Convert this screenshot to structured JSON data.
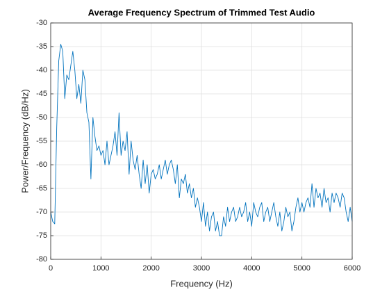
{
  "chart_data": {
    "type": "line",
    "title": "Average Frequency Spectrum of Trimmed Test Audio",
    "xlabel": "Frequency (Hz)",
    "ylabel": "Power/Frequency (dB/Hz)",
    "x": [
      0,
      40,
      80,
      120,
      160,
      200,
      240,
      280,
      320,
      360,
      400,
      440,
      480,
      520,
      560,
      600,
      640,
      680,
      720,
      760,
      800,
      840,
      880,
      920,
      960,
      1000,
      1040,
      1080,
      1120,
      1160,
      1200,
      1240,
      1280,
      1320,
      1360,
      1400,
      1440,
      1480,
      1520,
      1560,
      1600,
      1640,
      1680,
      1720,
      1760,
      1800,
      1840,
      1880,
      1920,
      1960,
      2000,
      2040,
      2080,
      2120,
      2160,
      2200,
      2240,
      2280,
      2320,
      2360,
      2400,
      2440,
      2480,
      2520,
      2560,
      2600,
      2640,
      2680,
      2720,
      2760,
      2800,
      2840,
      2880,
      2920,
      2960,
      3000,
      3040,
      3080,
      3120,
      3160,
      3200,
      3240,
      3280,
      3320,
      3360,
      3400,
      3440,
      3480,
      3520,
      3560,
      3600,
      3640,
      3680,
      3720,
      3760,
      3800,
      3840,
      3880,
      3920,
      3960,
      4000,
      4040,
      4080,
      4120,
      4160,
      4200,
      4240,
      4280,
      4320,
      4360,
      4400,
      4440,
      4480,
      4520,
      4560,
      4600,
      4640,
      4680,
      4720,
      4760,
      4800,
      4840,
      4880,
      4920,
      4960,
      5000,
      5040,
      5080,
      5120,
      5160,
      5200,
      5240,
      5280,
      5320,
      5360,
      5400,
      5440,
      5480,
      5520,
      5560,
      5600,
      5640,
      5680,
      5720,
      5760,
      5800,
      5840,
      5880,
      5920,
      5960,
      6000
    ],
    "series": [
      {
        "color": "#0072bd",
        "values": [
          -70,
          -72,
          -72.5,
          -52,
          -38,
          -34.5,
          -36,
          -46,
          -41,
          -42,
          -39,
          -36,
          -40,
          -46,
          -43,
          -47,
          -40,
          -42,
          -49,
          -51,
          -63,
          -50,
          -54,
          -57,
          -56,
          -58,
          -57,
          -60,
          -55,
          -60,
          -58,
          -56,
          -53,
          -58,
          -49,
          -58,
          -55,
          -57,
          -53,
          -62,
          -55,
          -59,
          -61,
          -58,
          -62,
          -65,
          -59,
          -64,
          -60,
          -66,
          -62,
          -61,
          -63,
          -62,
          -60,
          -63,
          -61,
          -59,
          -62,
          -60,
          -59,
          -61,
          -64,
          -60,
          -67,
          -63,
          -64,
          -62,
          -66,
          -64,
          -67,
          -65,
          -69,
          -67,
          -69,
          -72,
          -68,
          -73,
          -70,
          -74,
          -71,
          -70,
          -74,
          -72,
          -75,
          -75,
          -71,
          -73,
          -69,
          -72,
          -70,
          -69,
          -72,
          -71,
          -69,
          -71,
          -70,
          -68,
          -72,
          -70,
          -73,
          -68,
          -70,
          -71,
          -69,
          -68,
          -72,
          -70,
          -69,
          -72,
          -70,
          -68,
          -71,
          -73,
          -70,
          -74,
          -72,
          -69,
          -71,
          -70,
          -74,
          -72,
          -69,
          -67,
          -70,
          -68,
          -70,
          -68,
          -67,
          -69,
          -64,
          -69,
          -65,
          -67,
          -66,
          -69,
          -65,
          -68,
          -67,
          -70,
          -66,
          -68,
          -66,
          -67,
          -69,
          -66,
          -67,
          -70,
          -72,
          -69,
          -72
        ]
      }
    ],
    "xlim": [
      0,
      6000
    ],
    "xticks": [
      0,
      1000,
      2000,
      3000,
      4000,
      5000,
      6000
    ],
    "ylim": [
      -80,
      -30
    ],
    "yticks": [
      -80,
      -75,
      -70,
      -65,
      -60,
      -55,
      -50,
      -45,
      -40,
      -35,
      -30
    ],
    "grid": true
  }
}
